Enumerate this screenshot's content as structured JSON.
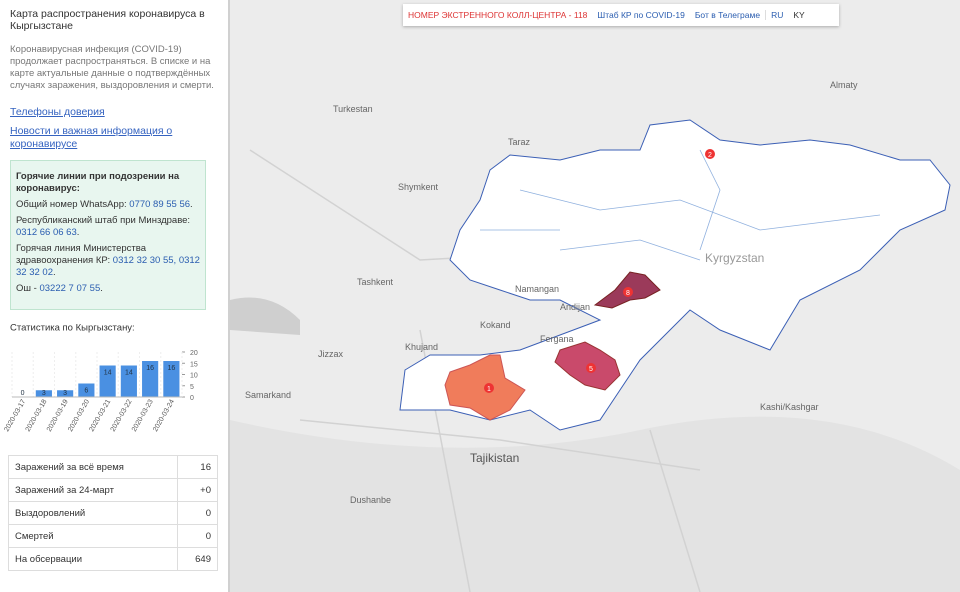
{
  "sidebar": {
    "title": "Карта распространения коронавируса в Кыргызстане",
    "description": "Коронавирусная инфекция (COVID-19) продолжает распространяться. В списке и на карте актуальные данные о подтверждённых случаях заражения, выздоровления и смерти.",
    "links": [
      "Телефоны доверия",
      "Новости и важная информация о коронавирусе"
    ]
  },
  "hotlines": {
    "heading": "Горячие линии при подозрении на коронавирус:",
    "items": [
      {
        "label": "Общий номер WhatsApp:",
        "phone": "0770 89 55 56",
        "suffix": "."
      },
      {
        "label": "Республиканский штаб при Минздраве:",
        "phone": "0312 66 06 63",
        "suffix": "."
      },
      {
        "label": "Горячая линия Министерства здравоохранения КР:",
        "phone": "0312 32 30 55, 0312 32 32 02",
        "suffix": "."
      },
      {
        "label": "Ош -",
        "phone": "03222 7 07 55",
        "suffix": "."
      }
    ]
  },
  "chart_data": {
    "type": "bar",
    "title": "Статистика по Кыргызстану:",
    "categories": [
      "2020-03-17",
      "2020-03-18",
      "2020-03-19",
      "2020-03-20",
      "2020-03-21",
      "2020-03-22",
      "2020-03-23",
      "2020-03-24"
    ],
    "values": [
      0,
      3,
      3,
      6,
      14,
      14,
      16,
      16
    ],
    "color": "#4a90e2",
    "ylim": [
      0,
      20
    ],
    "yticks": [
      0,
      5,
      10,
      15,
      20
    ]
  },
  "stats": {
    "rows": [
      [
        "Заражений за всё время",
        16
      ],
      [
        "Заражений за 24-март",
        "+0"
      ],
      [
        "Выздоровлений",
        0
      ],
      [
        "Смертей",
        0
      ],
      [
        "На обсервации",
        649
      ]
    ]
  },
  "topbar": [
    "НОМЕР ЭКСТРЕННОГО КОЛЛ-ЦЕНТРА - 118",
    "Штаб КР по COVID-19",
    "Бот в Телеграме",
    "RU",
    "KY"
  ],
  "map": {
    "markers": [
      2,
      8,
      5,
      1
    ],
    "places": [
      "Kyrgyzstan",
      "Tajikistan",
      "Almaty",
      "Taraz",
      "Shymkent",
      "Tashkent",
      "Namangan",
      "Andijan",
      "Fergana",
      "Kokand",
      "Khujand",
      "Jizzax",
      "Samarkand",
      "Dushanbe",
      "Kashi/Kashgar",
      "Turkestan"
    ]
  }
}
